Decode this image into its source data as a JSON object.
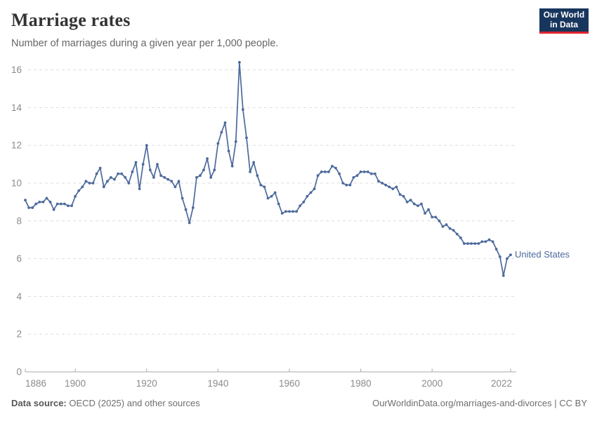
{
  "header": {
    "title": "Marriage rates",
    "subtitle": "Number of marriages during a given year per 1,000 people.",
    "logo": {
      "line1": "Our World",
      "line2": "in Data",
      "bg_color": "#18365d",
      "accent_color": "#e0232e"
    }
  },
  "chart_data": {
    "type": "line",
    "title": "Marriage rates",
    "subtitle": "Number of marriages during a given year per 1,000 people.",
    "xlabel": "",
    "ylabel": "",
    "xlim": [
      1886,
      2022
    ],
    "ylim": [
      0,
      16.5
    ],
    "x_ticks": [
      1886,
      1900,
      1920,
      1940,
      1960,
      1980,
      2000,
      2022
    ],
    "y_ticks": [
      0,
      2,
      4,
      6,
      8,
      10,
      12,
      14,
      16
    ],
    "grid": "horizontal-dashed",
    "legend_position": "end-of-line-label",
    "series": [
      {
        "name": "United States",
        "color": "#4c6a9c",
        "x": [
          1886,
          1887,
          1888,
          1889,
          1890,
          1891,
          1892,
          1893,
          1894,
          1895,
          1896,
          1897,
          1898,
          1899,
          1900,
          1901,
          1902,
          1903,
          1904,
          1905,
          1906,
          1907,
          1908,
          1909,
          1910,
          1911,
          1912,
          1913,
          1914,
          1915,
          1916,
          1917,
          1918,
          1919,
          1920,
          1921,
          1922,
          1923,
          1924,
          1925,
          1926,
          1927,
          1928,
          1929,
          1930,
          1931,
          1932,
          1933,
          1934,
          1935,
          1936,
          1937,
          1938,
          1939,
          1940,
          1941,
          1942,
          1943,
          1944,
          1945,
          1946,
          1947,
          1948,
          1949,
          1950,
          1951,
          1952,
          1953,
          1954,
          1955,
          1956,
          1957,
          1958,
          1959,
          1960,
          1961,
          1962,
          1963,
          1964,
          1965,
          1966,
          1967,
          1968,
          1969,
          1970,
          1971,
          1972,
          1973,
          1974,
          1975,
          1976,
          1977,
          1978,
          1979,
          1980,
          1981,
          1982,
          1983,
          1984,
          1985,
          1986,
          1987,
          1988,
          1989,
          1990,
          1991,
          1992,
          1993,
          1994,
          1995,
          1996,
          1997,
          1998,
          1999,
          2000,
          2001,
          2002,
          2003,
          2004,
          2005,
          2006,
          2007,
          2008,
          2009,
          2010,
          2011,
          2012,
          2013,
          2014,
          2015,
          2016,
          2017,
          2018,
          2019,
          2020,
          2021,
          2022
        ],
        "values": [
          9.1,
          8.7,
          8.7,
          8.9,
          9.0,
          9.0,
          9.2,
          9.0,
          8.6,
          8.9,
          8.9,
          8.9,
          8.8,
          8.8,
          9.3,
          9.6,
          9.8,
          10.1,
          10.0,
          10.0,
          10.5,
          10.8,
          9.8,
          10.1,
          10.3,
          10.2,
          10.5,
          10.5,
          10.3,
          10.0,
          10.6,
          11.1,
          9.7,
          11.0,
          12.0,
          10.7,
          10.3,
          11.0,
          10.4,
          10.3,
          10.2,
          10.1,
          9.8,
          10.1,
          9.2,
          8.6,
          7.9,
          8.7,
          10.3,
          10.4,
          10.7,
          11.3,
          10.3,
          10.7,
          12.1,
          12.7,
          13.2,
          11.7,
          10.9,
          12.2,
          16.4,
          13.9,
          12.4,
          10.6,
          11.1,
          10.4,
          9.9,
          9.8,
          9.2,
          9.3,
          9.5,
          8.9,
          8.4,
          8.5,
          8.5,
          8.5,
          8.5,
          8.8,
          9.0,
          9.3,
          9.5,
          9.7,
          10.4,
          10.6,
          10.6,
          10.6,
          10.9,
          10.8,
          10.5,
          10.0,
          9.9,
          9.9,
          10.3,
          10.4,
          10.6,
          10.6,
          10.6,
          10.5,
          10.5,
          10.1,
          10.0,
          9.9,
          9.8,
          9.7,
          9.8,
          9.4,
          9.3,
          9.0,
          9.1,
          8.9,
          8.8,
          8.9,
          8.4,
          8.6,
          8.2,
          8.2,
          8.0,
          7.7,
          7.8,
          7.6,
          7.5,
          7.3,
          7.1,
          6.8,
          6.8,
          6.8,
          6.8,
          6.8,
          6.9,
          6.9,
          7.0,
          6.9,
          6.5,
          6.1,
          5.1,
          6.0,
          6.2
        ]
      }
    ]
  },
  "colors": {
    "line": "#4c6a9c",
    "entity_label": "#4c6a9c",
    "grid": "#dddddd",
    "axis": "#a8a8a8",
    "tick_text": "#8b8b8b"
  },
  "footer": {
    "datasource_label": "Data source:",
    "datasource_value": " OECD (2025) and other sources",
    "link": "OurWorldinData.org/marriages-and-divorces | CC BY"
  }
}
